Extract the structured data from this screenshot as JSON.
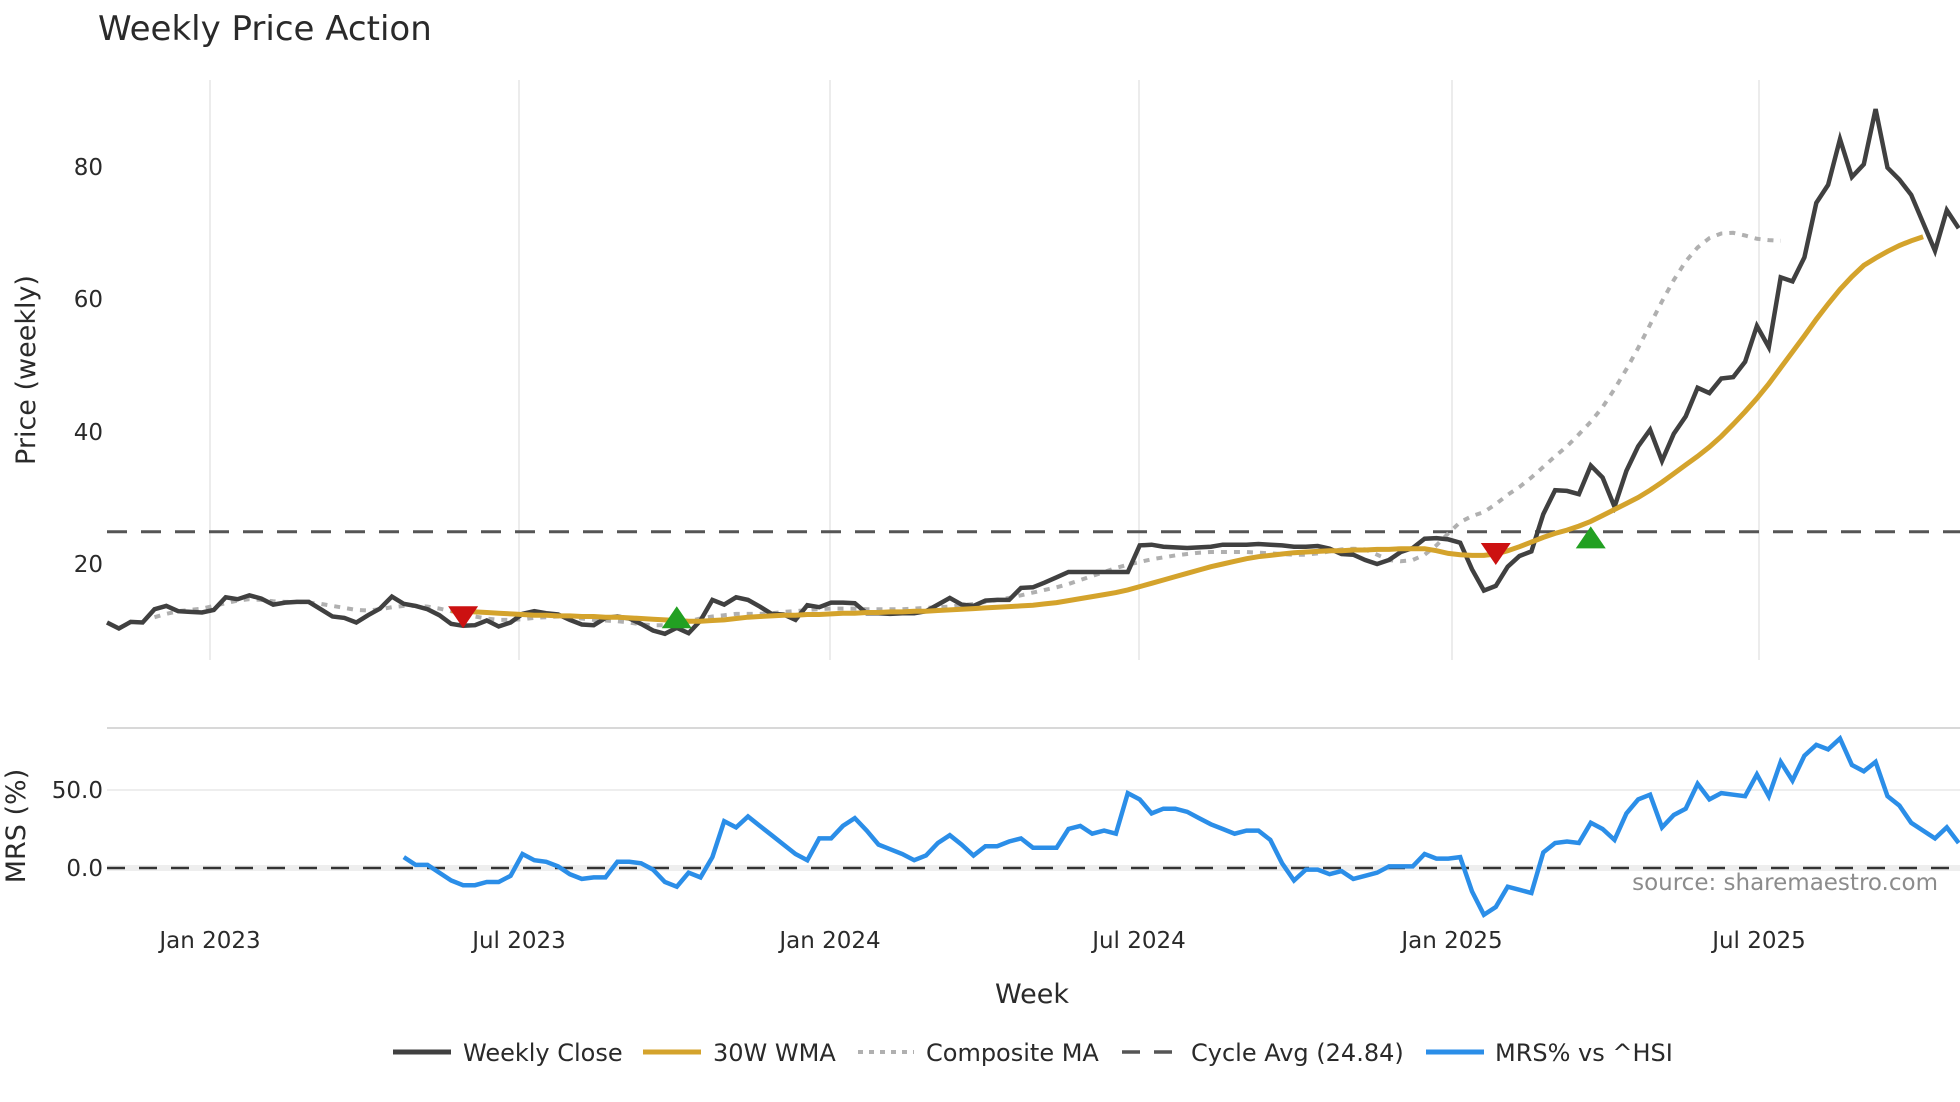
{
  "chart_data": [
    {
      "type": "line",
      "panel": "price",
      "title": "Weekly Price Action",
      "xlabel": "Week",
      "ylabel": "Price (weekly)",
      "yticks": [
        20,
        40,
        60,
        80
      ],
      "ylim": [
        5.5,
        93
      ],
      "xticks": [
        "Jan 2023",
        "Jul 2023",
        "Jan 2024",
        "Jul 2024",
        "Jan 2025",
        "Jul 2025"
      ],
      "grid": "vertical",
      "x_start_week_offset_from_jan2023": -9,
      "series": [
        {
          "name": "Weekly Close",
          "color": "#404040",
          "style": "solid",
          "values": [
            11.2,
            10.3,
            11.3,
            11.2,
            13.2,
            13.7,
            12.9,
            12.8,
            12.7,
            13.1,
            15.0,
            14.7,
            15.3,
            14.8,
            13.9,
            14.2,
            14.3,
            14.3,
            13.2,
            12.1,
            11.9,
            11.2,
            12.3,
            13.3,
            15.1,
            14.0,
            13.7,
            13.2,
            12.3,
            11.0,
            10.7,
            10.8,
            11.5,
            10.6,
            11.2,
            12.5,
            12.9,
            12.6,
            12.4,
            11.6,
            10.9,
            10.8,
            11.9,
            12.1,
            11.8,
            11.0,
            10.0,
            9.5,
            10.4,
            9.6,
            11.5,
            14.6,
            13.9,
            15.0,
            14.6,
            13.6,
            12.5,
            12.4,
            11.6,
            13.8,
            13.5,
            14.2,
            14.2,
            14.1,
            12.6,
            12.6,
            12.5,
            12.6,
            12.6,
            12.9,
            13.9,
            14.9,
            13.9,
            13.7,
            14.5,
            14.6,
            14.6,
            16.4,
            16.5,
            17.2,
            18.0,
            18.8,
            18.8,
            18.8,
            18.8,
            18.8,
            18.8,
            22.8,
            22.9,
            22.6,
            22.5,
            22.4,
            22.5,
            22.6,
            22.9,
            22.9,
            22.9,
            23.0,
            22.9,
            22.8,
            22.6,
            22.6,
            22.7,
            22.3,
            21.5,
            21.4,
            20.6,
            20.0,
            20.6,
            21.8,
            22.4,
            23.8,
            23.9,
            23.7,
            23.2,
            19.2,
            16.0,
            16.7,
            19.6,
            21.2,
            21.9,
            27.5,
            31.1,
            31.0,
            30.5,
            34.8,
            33.0,
            28.6,
            34.0,
            37.7,
            40.2,
            35.5,
            39.6,
            42.2,
            46.5,
            45.7,
            47.9,
            48.1,
            50.4,
            55.8,
            52.6,
            63.1,
            62.5,
            66.1,
            74.3,
            77.0,
            83.9,
            78.2,
            80.1,
            88.4,
            79.6,
            77.8,
            75.5,
            71.3,
            67.1,
            73.2,
            70.5
          ]
        },
        {
          "name": "30W WMA",
          "color": "#d4a32c",
          "style": "solid",
          "start_index": 29,
          "values": [
            13.0,
            12.9,
            12.8,
            12.7,
            12.6,
            12.5,
            12.4,
            12.3,
            12.3,
            12.2,
            12.2,
            12.1,
            12.1,
            12.0,
            12.0,
            11.9,
            11.8,
            11.7,
            11.6,
            11.5,
            11.4,
            11.4,
            11.5,
            11.6,
            11.8,
            12.0,
            12.1,
            12.2,
            12.3,
            12.3,
            12.4,
            12.4,
            12.5,
            12.6,
            12.6,
            12.7,
            12.7,
            12.8,
            12.8,
            12.9,
            12.9,
            13.0,
            13.1,
            13.2,
            13.3,
            13.4,
            13.5,
            13.6,
            13.7,
            13.8,
            14.0,
            14.2,
            14.5,
            14.8,
            15.1,
            15.4,
            15.7,
            16.1,
            16.6,
            17.1,
            17.6,
            18.1,
            18.6,
            19.1,
            19.6,
            20.0,
            20.4,
            20.8,
            21.1,
            21.3,
            21.5,
            21.7,
            21.8,
            21.9,
            22.0,
            22.0,
            22.1,
            22.1,
            22.2,
            22.2,
            22.3,
            22.3,
            22.3,
            22.0,
            21.6,
            21.4,
            21.3,
            21.3,
            21.5,
            22.0,
            22.6,
            23.3,
            24.0,
            24.6,
            25.1,
            25.7,
            26.4,
            27.3,
            28.2,
            29.1,
            30.0,
            31.1,
            32.3,
            33.6,
            34.9,
            36.2,
            37.6,
            39.2,
            41.0,
            42.9,
            44.9,
            47.1,
            49.5,
            51.9,
            54.3,
            56.8,
            59.1,
            61.3,
            63.2,
            64.9,
            66.0,
            67.0,
            67.9,
            68.6,
            69.2
          ]
        },
        {
          "name": "Composite MA",
          "color": "#b0b0b0",
          "style": "dotted",
          "start_index": 4,
          "values": [
            12.0,
            12.5,
            12.9,
            13.1,
            13.3,
            13.7,
            14.1,
            14.5,
            14.7,
            14.6,
            14.4,
            14.3,
            14.3,
            14.2,
            14.0,
            13.7,
            13.4,
            13.1,
            13.0,
            13.2,
            13.5,
            13.7,
            13.7,
            13.6,
            13.3,
            12.9,
            12.5,
            12.1,
            11.8,
            11.6,
            11.6,
            11.7,
            11.9,
            12.0,
            12.1,
            12.0,
            11.8,
            11.6,
            11.5,
            11.4,
            11.2,
            10.9,
            10.8,
            10.8,
            11.0,
            11.4,
            11.8,
            12.1,
            12.3,
            12.5,
            12.5,
            12.5,
            12.6,
            12.8,
            12.9,
            13.1,
            13.2,
            13.3,
            13.3,
            13.3,
            13.2,
            13.2,
            13.2,
            13.2,
            13.3,
            13.4,
            13.5,
            13.6,
            13.8,
            14.0,
            14.3,
            14.6,
            14.9,
            15.3,
            15.7,
            16.1,
            16.5,
            17.0,
            17.6,
            18.2,
            18.8,
            19.4,
            19.9,
            20.3,
            20.7,
            21.0,
            21.3,
            21.5,
            21.7,
            21.8,
            21.8,
            21.8,
            21.8,
            21.7,
            21.6,
            21.5,
            21.4,
            21.4,
            21.6,
            21.9,
            22.2,
            22.3,
            22.2,
            21.4,
            20.6,
            20.4,
            20.6,
            21.4,
            22.8,
            24.6,
            26.3,
            27.2,
            27.8,
            29.0,
            30.4,
            31.6,
            33.0,
            34.6,
            36.2,
            37.7,
            39.5,
            41.4,
            43.6,
            46.3,
            49.3,
            52.5,
            56.0,
            59.5,
            62.7,
            65.5,
            67.6,
            69.0,
            69.7,
            69.8,
            69.4,
            68.9,
            68.7,
            68.6
          ]
        },
        {
          "name": "Cycle Avg (24.84)",
          "color": "#555555",
          "style": "dashed",
          "value": 24.84
        }
      ],
      "markers": [
        {
          "type": "sell",
          "shape": "triangle-down",
          "color": "#cc1111",
          "week_index": 30,
          "price": 12.0
        },
        {
          "type": "buy",
          "shape": "triangle-up",
          "color": "#22a022",
          "week_index": 48,
          "price": 12.0
        },
        {
          "type": "sell",
          "shape": "triangle-down",
          "color": "#cc1111",
          "week_index": 117,
          "price": 21.5
        },
        {
          "type": "buy",
          "shape": "triangle-up",
          "color": "#22a022",
          "week_index": 125,
          "price": 24.0
        }
      ]
    },
    {
      "type": "line",
      "panel": "mrs",
      "ylabel": "MRS (%)",
      "yticks": [
        "0.0",
        "50.0"
      ],
      "ylim": [
        -38,
        99
      ],
      "series": [
        {
          "name": "MRS% vs ^HSI",
          "color": "#2b8ee8",
          "style": "solid",
          "start_index": 25,
          "values": [
            7,
            2,
            2,
            -3,
            -8,
            -11,
            -11,
            -9,
            -9,
            -5,
            9,
            5,
            4,
            1,
            -4,
            -7,
            -6,
            -6,
            4,
            4,
            3,
            -1,
            -9,
            -12,
            -3,
            -6,
            7,
            30,
            26,
            33,
            27,
            21,
            15,
            9,
            5,
            19,
            19,
            27,
            32,
            24,
            15,
            12,
            9,
            5,
            8,
            16,
            21,
            15,
            8,
            14,
            14,
            17,
            19,
            13,
            13,
            13,
            25,
            27,
            22,
            24,
            22,
            48,
            44,
            35,
            38,
            38,
            36,
            32,
            28,
            25,
            22,
            24,
            24,
            18,
            3,
            -8,
            -1,
            -1,
            -4,
            -2,
            -7,
            -5,
            -3,
            1,
            1,
            1,
            9,
            6,
            6,
            7,
            -15,
            -30,
            -25,
            -12,
            -14,
            -16,
            10,
            16,
            17,
            16,
            29,
            25,
            18,
            35,
            44,
            47,
            26,
            34,
            38,
            54,
            44,
            48,
            47,
            46,
            60,
            46,
            68,
            56,
            72,
            79,
            76,
            83,
            66,
            62,
            68,
            46,
            40,
            29,
            24,
            19,
            26,
            16
          ]
        },
        {
          "name": "zero-line",
          "color": "#333333",
          "style": "dashed",
          "value": 0
        }
      ]
    }
  ],
  "header": {
    "title": "Weekly Price Action"
  },
  "axes": {
    "price_ylabel": "Price (weekly)",
    "mrs_ylabel": "MRS (%)",
    "xlabel": "Week",
    "price_yticks": [
      "20",
      "40",
      "60",
      "80"
    ],
    "mrs_yticks": [
      "0.0",
      "50.0"
    ],
    "xticks": [
      "Jan 2023",
      "Jul 2023",
      "Jan 2024",
      "Jul 2024",
      "Jan 2025",
      "Jul 2025"
    ]
  },
  "legend": {
    "items": [
      {
        "label": "Weekly Close",
        "color": "#404040",
        "style": "solid"
      },
      {
        "label": "30W WMA",
        "color": "#d4a32c",
        "style": "solid"
      },
      {
        "label": "Composite MA",
        "color": "#b0b0b0",
        "style": "dotted"
      },
      {
        "label": "Cycle Avg (24.84)",
        "color": "#555555",
        "style": "dashed"
      },
      {
        "label": "MRS% vs ^HSI",
        "color": "#2b8ee8",
        "style": "solid"
      }
    ]
  },
  "source": "source: sharemaestro.com"
}
